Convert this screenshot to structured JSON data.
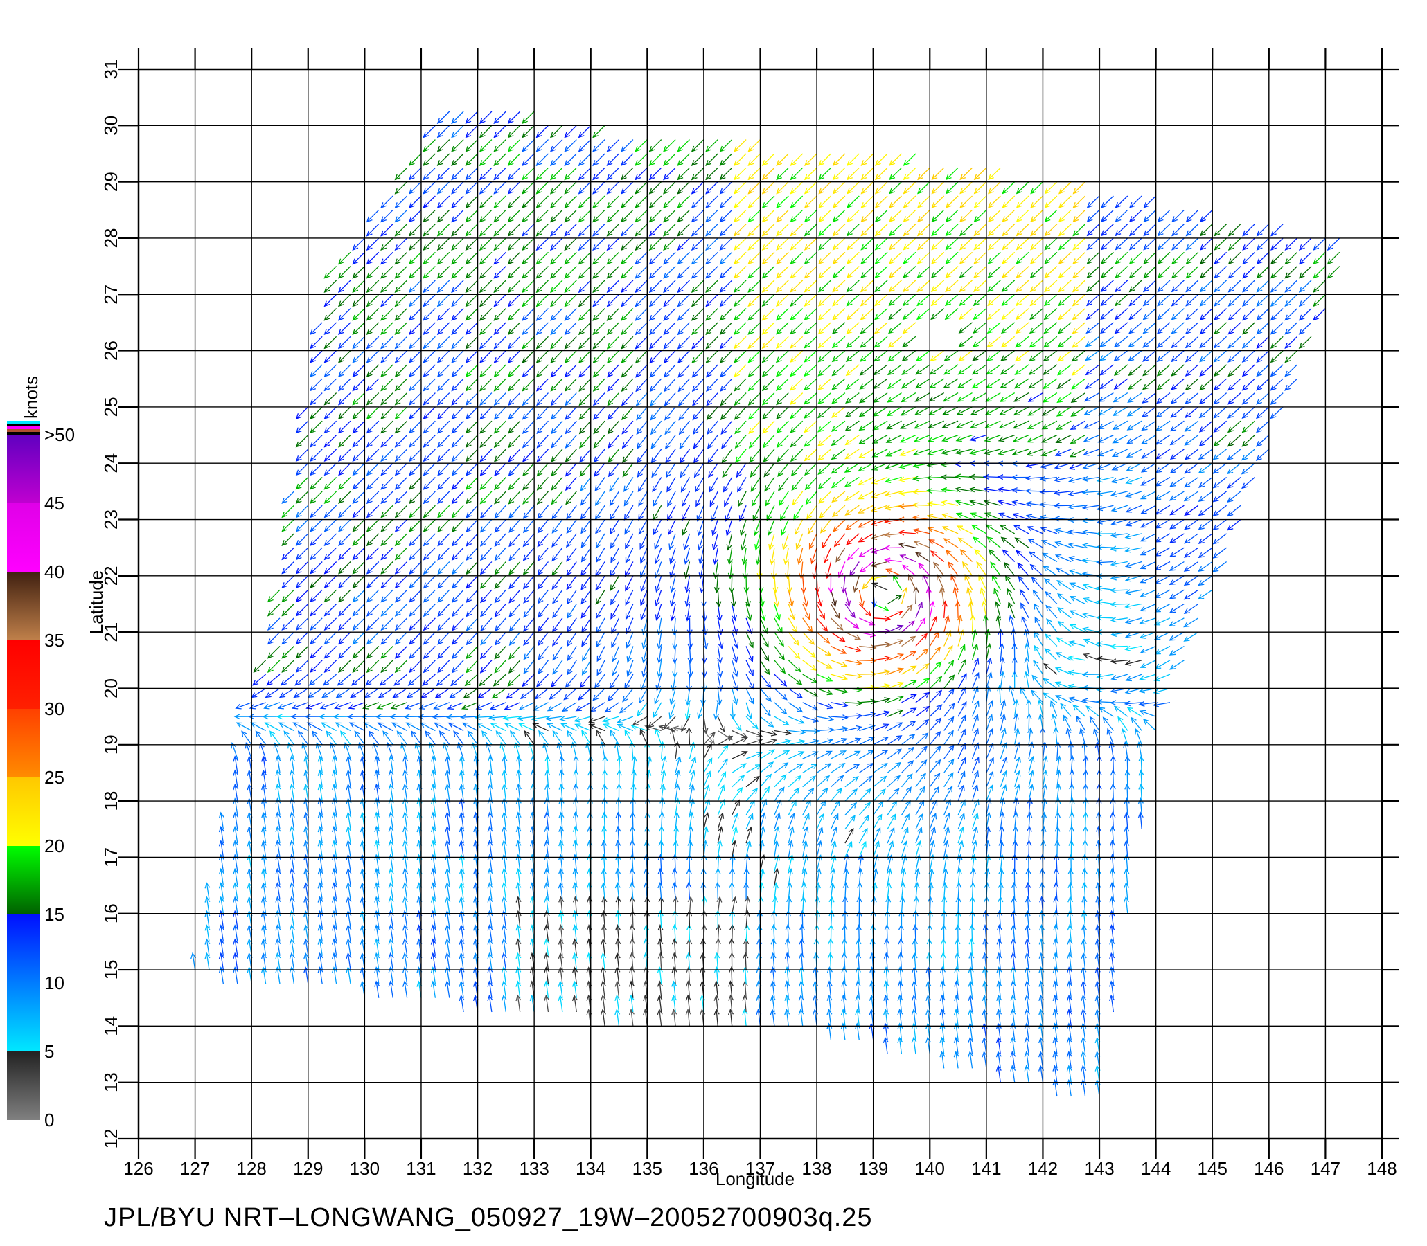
{
  "footer": "JPL/BYU  NRT–LONGWANG_050927_19W–20052700903q.25",
  "chart_data": {
    "type": "vector-field",
    "title": "",
    "xlabel": "Longitude",
    "ylabel": "Latitude",
    "xlim": [
      126,
      148
    ],
    "ylim": [
      12,
      31
    ],
    "x_ticks": [
      "126",
      "127",
      "128",
      "129",
      "130",
      "131",
      "132",
      "133",
      "134",
      "135",
      "136",
      "137",
      "138",
      "139",
      "140",
      "141",
      "142",
      "143",
      "144",
      "145",
      "146",
      "147",
      "148"
    ],
    "y_ticks": [
      "12",
      "13",
      "14",
      "15",
      "16",
      "17",
      "18",
      "19",
      "20",
      "21",
      "22",
      "23",
      "24",
      "25",
      "26",
      "27",
      "28",
      "29",
      "30",
      "31"
    ],
    "grid": true,
    "colorbar": {
      "units": "knots",
      "labels": [
        "0",
        "5",
        "10",
        "15",
        "20",
        "25",
        "30",
        "35",
        "40",
        "45",
        ">50"
      ],
      "stops": [
        {
          "from": 0,
          "to": 5,
          "colors": [
            "#808080",
            "#222222"
          ]
        },
        {
          "from": 5,
          "to": 15,
          "colors": [
            "#00e8ff",
            "#0010ff"
          ]
        },
        {
          "from": 15,
          "to": 20,
          "colors": [
            "#006000",
            "#00ff00"
          ]
        },
        {
          "from": 20,
          "to": 25,
          "colors": [
            "#ffff00",
            "#ffc800"
          ]
        },
        {
          "from": 25,
          "to": 30,
          "colors": [
            "#ff8c00",
            "#ff4000"
          ]
        },
        {
          "from": 30,
          "to": 35,
          "colors": [
            "#ff2000",
            "#ff0000"
          ]
        },
        {
          "from": 35,
          "to": 40,
          "colors": [
            "#c0804a",
            "#402010"
          ]
        },
        {
          "from": 40,
          "to": 45,
          "colors": [
            "#ff00ff",
            "#e000e8"
          ]
        },
        {
          "from": 45,
          "to": 50,
          "colors": [
            "#c000d0",
            "#6000c0"
          ]
        }
      ]
    },
    "swath_polygon_lonlat": [
      [
        127.0,
        15.0
      ],
      [
        127.8,
        19.2
      ],
      [
        128.4,
        21.2
      ],
      [
        129.2,
        26.5
      ],
      [
        129.5,
        27.5
      ],
      [
        130.2,
        28.5
      ],
      [
        131.6,
        30.5
      ],
      [
        134.5,
        30.0
      ],
      [
        140.0,
        29.5
      ],
      [
        143.0,
        29.0
      ],
      [
        147.5,
        28.0
      ],
      [
        144.0,
        19.0
      ],
      [
        143.0,
        12.5
      ],
      [
        138.0,
        13.8
      ],
      [
        134.0,
        14.0
      ],
      [
        132.0,
        14.2
      ],
      [
        130.0,
        14.5
      ],
      [
        127.0,
        14.8
      ]
    ],
    "cyclone_center": {
      "lon": 139.2,
      "lat": 21.7
    },
    "wind_regime": [
      {
        "description": "trade easterlies north of storm, blowing toward SW",
        "dir_deg_to": 225,
        "speed_kt": [
          8,
          22
        ]
      },
      {
        "description": "cyclonic circulation around center",
        "max_speed_kt": 50
      },
      {
        "description": "southerly flow south-east of storm, blowing toward N",
        "speed_kt": [
          3,
          14
        ]
      }
    ]
  }
}
